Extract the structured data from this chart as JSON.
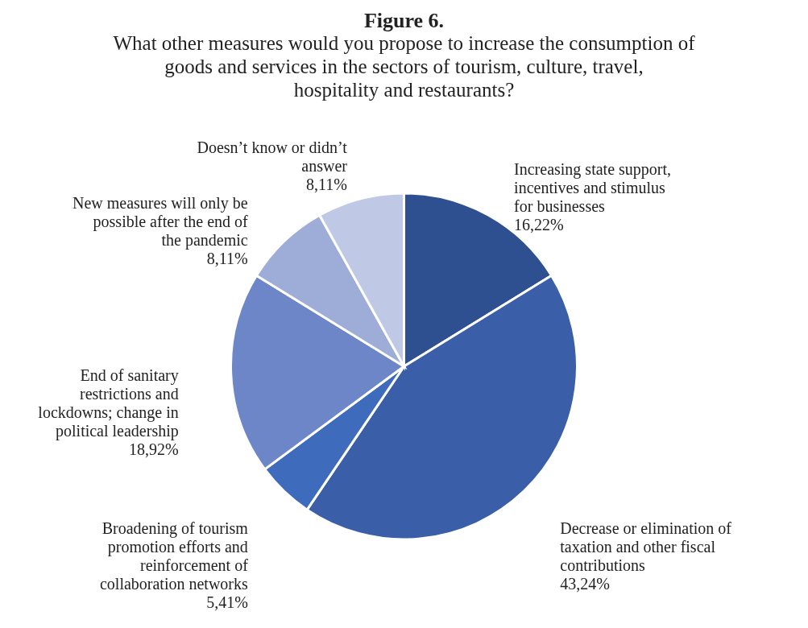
{
  "chart_data": {
    "type": "pie",
    "title": "Figure 6.",
    "subtitle": "What other measures would you propose to increase the consumption of goods and services in the sectors of tourism, culture, travel, hospitality and restaurants?",
    "categories": [
      "Increasing state support, incentives and stimulus for businesses",
      "Decrease or elimination of taxation and other fiscal contributions",
      "Broadening of tourism promotion efforts and reinforcement of collaboration networks",
      "End of sanitary restrictions and lockdowns; change in political leadership",
      "New measures will only be possible after the end of the pandemic",
      "Doesn’t know or didn’t answer"
    ],
    "values": [
      16.22,
      43.24,
      5.41,
      18.92,
      8.11,
      8.11
    ],
    "colors": [
      "#2f5090",
      "#3a5fa8",
      "#3f6bbd",
      "#6c86c8",
      "#9dadd8",
      "#bfc8e4"
    ],
    "value_labels": [
      "16,22%",
      "43,24%",
      "5,41%",
      "18,92%",
      "8,11%",
      "8,11%"
    ]
  }
}
